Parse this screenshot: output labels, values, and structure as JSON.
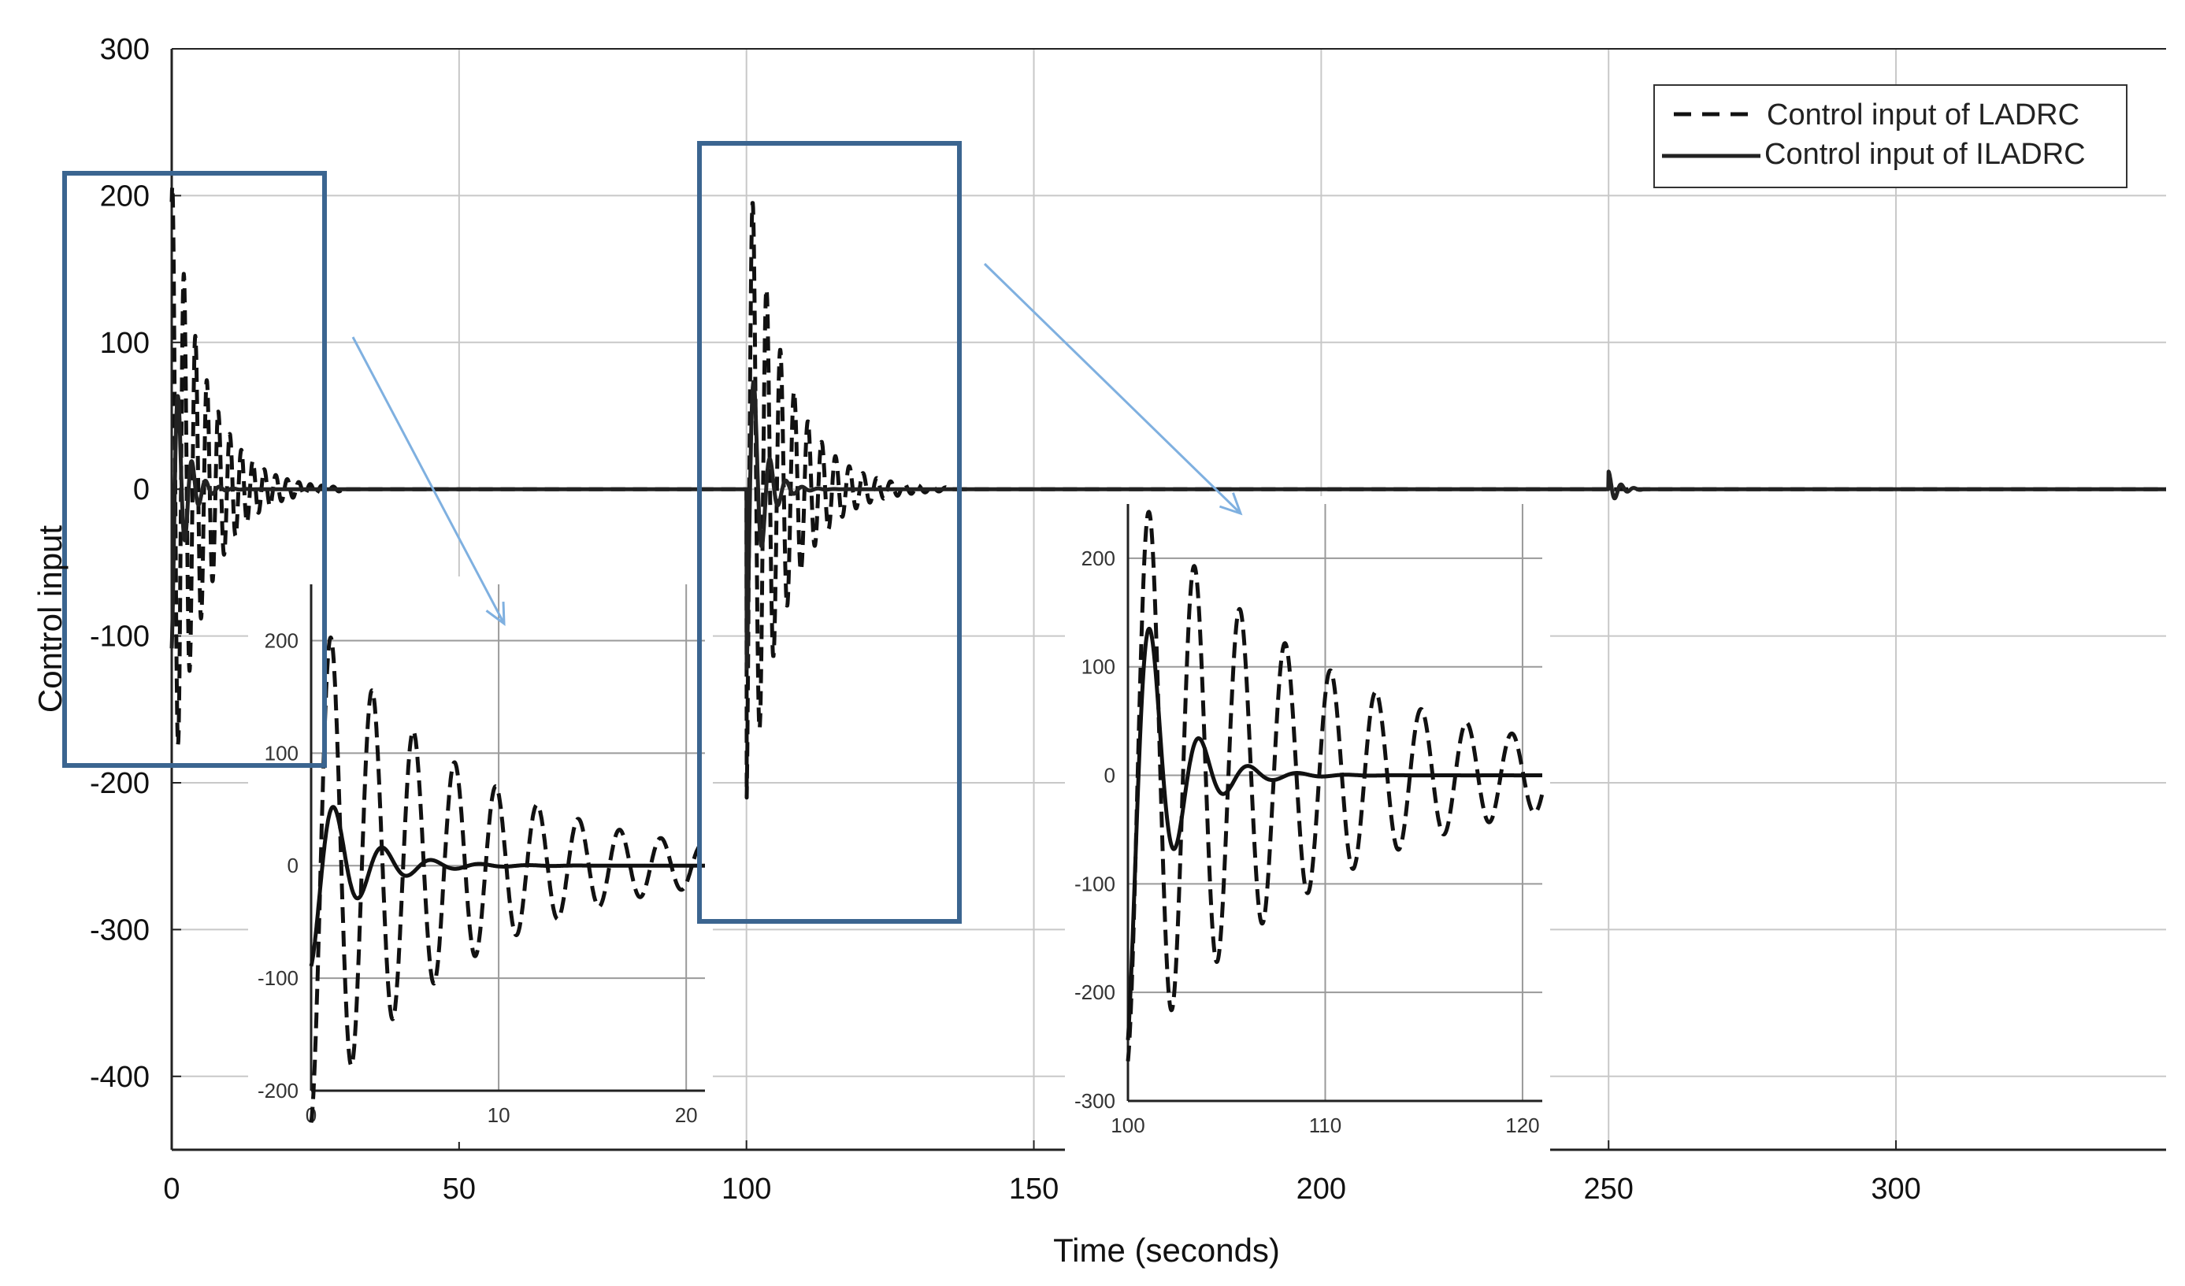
{
  "chart_data": {
    "type": "line",
    "title": "",
    "xlabel": "Time (seconds)",
    "ylabel": "Control input",
    "xlim": [
      0,
      347
    ],
    "ylim": [
      -450,
      300
    ],
    "xticks": [
      0,
      50,
      100,
      150,
      200,
      250,
      300
    ],
    "xtick_labels": [
      "0",
      "50",
      "100",
      "150",
      "200",
      "250",
      "300"
    ],
    "yticks": [
      300,
      200,
      100,
      0,
      -100,
      -200,
      -300,
      -400
    ],
    "ytick_labels": [
      "300",
      "200",
      "100",
      "0",
      "-100",
      "-200",
      "-300",
      "-400"
    ],
    "grid": true,
    "legend": {
      "placement": "top-right",
      "entries": [
        "Control input of LADRC",
        "Control input of ILADRC"
      ]
    },
    "series": [
      {
        "name": "Control input of LADRC",
        "style": "dashed",
        "color": "#111111",
        "segments": [
          {
            "t0": 0,
            "t1": 30,
            "amplitude": 210,
            "period": 2.0,
            "decay": 0.17,
            "phase": 1.2
          },
          {
            "t0": 100,
            "t1": 135,
            "amplitude": 230,
            "period": 2.4,
            "decay": 0.15,
            "phase": -1.3
          }
        ]
      },
      {
        "name": "Control input of ILADRC",
        "style": "solid",
        "color": "#222222",
        "segments": [
          {
            "t0": 0,
            "t1": 25,
            "amplitude": 110,
            "period": 2.4,
            "decay": 0.5,
            "phase": -1.4
          },
          {
            "t0": 100,
            "t1": 120,
            "amplitude": 130,
            "period": 2.8,
            "decay": 0.45,
            "phase": -1.4
          },
          {
            "t0": 250,
            "t1": 256,
            "amplitude": 12,
            "period": 2.2,
            "decay": 0.6,
            "phase": 1.5
          }
        ]
      }
    ],
    "insets": [
      {
        "xlim": [
          0,
          21
        ],
        "ylim": [
          -200,
          250
        ],
        "xticks": [
          0,
          10,
          20
        ],
        "xtick_labels": [
          "0",
          "10",
          "20"
        ],
        "yticks": [
          200,
          100,
          0,
          -100,
          -200
        ],
        "ytick_labels": [
          "200",
          "100",
          "0",
          "-100",
          "-200"
        ],
        "series": [
          {
            "name": "Control input of LADRC",
            "style": "dashed",
            "amplitude": 230,
            "period": 2.2,
            "decay": 0.12,
            "phase": -1.45
          },
          {
            "name": "Control input of ILADRC",
            "style": "solid",
            "amplitude": 90,
            "period": 2.6,
            "decay": 0.45,
            "phase": -1.45
          }
        ]
      },
      {
        "xlim": [
          100,
          121
        ],
        "ylim": [
          -300,
          250
        ],
        "xticks": [
          100,
          110,
          120
        ],
        "xtick_labels": [
          "100",
          "110",
          "120"
        ],
        "yticks": [
          200,
          100,
          0,
          -100,
          -200,
          -300
        ],
        "ytick_labels": [
          "200",
          "100",
          "0",
          "-100",
          "-200",
          "-300"
        ],
        "series": [
          {
            "name": "Control input of LADRC",
            "style": "dashed",
            "amplitude": 270,
            "period": 2.3,
            "decay": 0.1,
            "phase": -1.35
          },
          {
            "name": "Control input of ILADRC",
            "style": "solid",
            "amplitude": 250,
            "period": 2.5,
            "decay": 0.55,
            "phase": -1.35
          }
        ]
      }
    ],
    "annotation_color": "#3b6590",
    "arrow_color": "#7fb0e0"
  }
}
